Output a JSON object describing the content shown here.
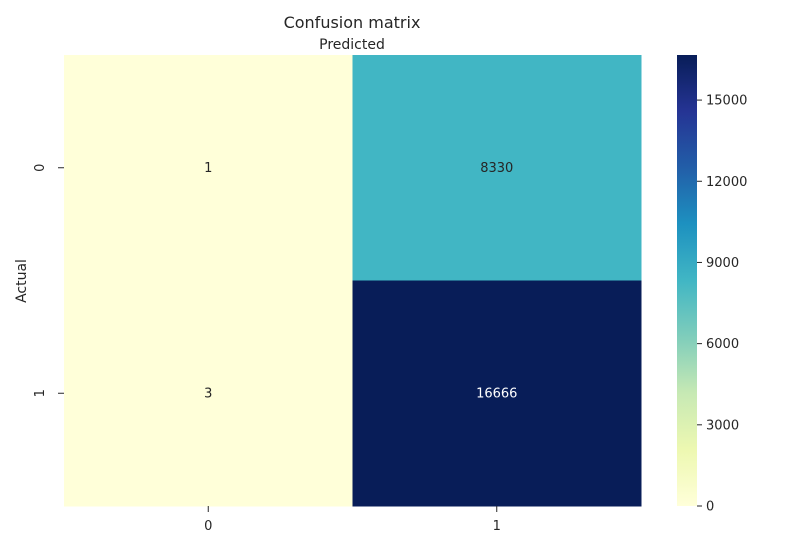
{
  "chart_data": {
    "type": "heatmap",
    "title": "Confusion matrix",
    "xlabel": "Predicted",
    "ylabel": "Actual",
    "x_categories": [
      "0",
      "1"
    ],
    "y_categories": [
      "0",
      "1"
    ],
    "values": [
      [
        1,
        8330
      ],
      [
        3,
        16666
      ]
    ],
    "colorbar": {
      "colormap": "YlGnBu",
      "range": [
        0,
        16666
      ],
      "ticks": [
        0,
        3000,
        6000,
        9000,
        12000,
        15000
      ]
    },
    "grid": false
  }
}
